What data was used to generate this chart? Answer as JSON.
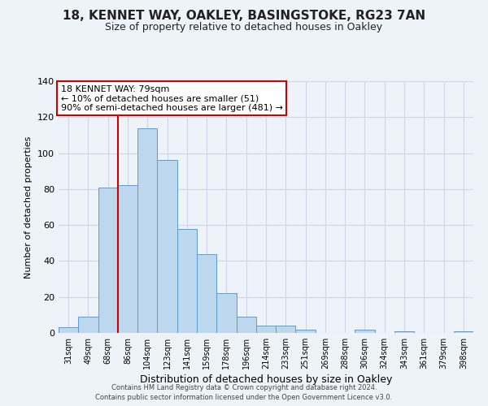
{
  "title": "18, KENNET WAY, OAKLEY, BASINGSTOKE, RG23 7AN",
  "subtitle": "Size of property relative to detached houses in Oakley",
  "xlabel": "Distribution of detached houses by size in Oakley",
  "ylabel": "Number of detached properties",
  "bar_labels": [
    "31sqm",
    "49sqm",
    "68sqm",
    "86sqm",
    "104sqm",
    "123sqm",
    "141sqm",
    "159sqm",
    "178sqm",
    "196sqm",
    "214sqm",
    "233sqm",
    "251sqm",
    "269sqm",
    "288sqm",
    "306sqm",
    "324sqm",
    "343sqm",
    "361sqm",
    "379sqm",
    "398sqm"
  ],
  "bar_values": [
    3,
    9,
    81,
    82,
    114,
    96,
    58,
    44,
    22,
    9,
    4,
    4,
    2,
    0,
    0,
    2,
    0,
    1,
    0,
    0,
    1
  ],
  "bar_color": "#BDD7EE",
  "bar_edge_color": "#5B9BD5",
  "ylim": [
    0,
    140
  ],
  "yticks": [
    0,
    20,
    40,
    60,
    80,
    100,
    120,
    140
  ],
  "red_line_index": 3,
  "red_line_color": "#CC0000",
  "annotation_line1": "18 KENNET WAY: 79sqm",
  "annotation_line2": "← 10% of detached houses are smaller (51)",
  "annotation_line3": "90% of semi-detached houses are larger (481) →",
  "annotation_box_color": "#ffffff",
  "annotation_box_edge": "#CC0000",
  "bg_color": "#EEF3FA",
  "grid_color": "#d0d8e8",
  "footer1": "Contains HM Land Registry data © Crown copyright and database right 2024.",
  "footer2": "Contains public sector information licensed under the Open Government Licence v3.0."
}
